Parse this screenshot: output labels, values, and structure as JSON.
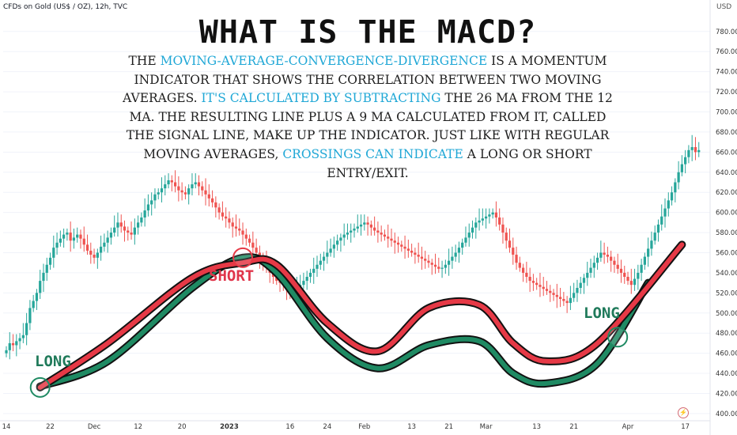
{
  "header": {
    "symbol": "CFDs on Gold (US$ / OZ), 12h, TVC",
    "currency": "USD"
  },
  "title": "WHAT IS THE MACD?",
  "explanation": [
    {
      "text": "THE ",
      "highlight": false
    },
    {
      "text": "MOVING-AVERAGE-CONVERGENCE-DIVERGENCE",
      "highlight": true
    },
    {
      "text": " IS A MOMENTUM INDICATOR THAT SHOWS THE CORRELATION BETWEEN TWO MOVING AVERAGES. ",
      "highlight": false
    },
    {
      "text": "IT'S CALCULATED BY SUBTRACTING",
      "highlight": true
    },
    {
      "text": " THE 26 MA FROM THE 12 MA. THE RESULTING LINE PLUS A 9 MA CALCULATED FROM IT, CALLED THE SIGNAL LINE, MAKE UP THE INDICATOR. JUST LIKE WITH REGULAR MOVING AVERAGES, ",
      "highlight": false
    },
    {
      "text": "CROSSINGS CAN INDICATE",
      "highlight": true
    },
    {
      "text": " A LONG OR SHORT ENTRY/EXIT.",
      "highlight": false
    }
  ],
  "annotations": {
    "long_left": "LONG",
    "short": "SHORT",
    "long_right": "LONG"
  },
  "colors": {
    "up": "#26a69a",
    "down": "#ef5350",
    "macd_line": "#1f8a63",
    "signal_line": "#e63946",
    "highlight": "#1fa7d6"
  },
  "chart_data": {
    "type": "candlestick",
    "y_axis": {
      "unit": "USD",
      "ticks": [
        780,
        760,
        740,
        720,
        700,
        680,
        660,
        640,
        620,
        600,
        580,
        560,
        540,
        520,
        500,
        480,
        460,
        440,
        420,
        400
      ],
      "tick_labels": [
        "780.00",
        "760.00",
        "740.00",
        "720.00",
        "700.00",
        "680.00",
        "660.00",
        "640.00",
        "620.00",
        "600.00",
        "580.00",
        "560.00",
        "540.00",
        "520.00",
        "500.00",
        "480.00",
        "460.00",
        "440.00",
        "420.00",
        "400.00"
      ],
      "range": [
        396,
        794
      ]
    },
    "x_axis": {
      "ticks": [
        {
          "label": "14",
          "pos": 0
        },
        {
          "label": "22",
          "pos": 13
        },
        {
          "label": "Dec",
          "pos": 26
        },
        {
          "label": "12",
          "pos": 39
        },
        {
          "label": "20",
          "pos": 52
        },
        {
          "label": "2023",
          "pos": 66,
          "bold": true
        },
        {
          "label": "16",
          "pos": 84
        },
        {
          "label": "24",
          "pos": 95
        },
        {
          "label": "Feb",
          "pos": 106
        },
        {
          "label": "13",
          "pos": 120
        },
        {
          "label": "21",
          "pos": 131
        },
        {
          "label": "Mar",
          "pos": 142
        },
        {
          "label": "13",
          "pos": 157
        },
        {
          "label": "21",
          "pos": 168
        },
        {
          "label": "Apr",
          "pos": 184
        },
        {
          "label": "17",
          "pos": 201
        }
      ]
    },
    "closes": [
      463,
      470,
      468,
      472,
      475,
      478,
      490,
      505,
      512,
      520,
      532,
      540,
      548,
      555,
      565,
      570,
      574,
      578,
      580,
      572,
      575,
      578,
      574,
      568,
      562,
      558,
      555,
      560,
      566,
      570,
      575,
      580,
      585,
      590,
      586,
      582,
      580,
      578,
      585,
      590,
      595,
      602,
      608,
      612,
      618,
      620,
      624,
      628,
      632,
      630,
      626,
      622,
      620,
      618,
      624,
      628,
      630,
      626,
      622,
      618,
      614,
      610,
      605,
      600,
      596,
      594,
      590,
      586,
      584,
      582,
      578,
      574,
      570,
      565,
      560,
      555,
      550,
      545,
      540,
      536,
      532,
      530,
      528,
      524,
      522,
      520,
      524,
      528,
      532,
      536,
      540,
      544,
      548,
      552,
      556,
      560,
      564,
      568,
      572,
      575,
      578,
      580,
      582,
      584,
      586,
      588,
      590,
      588,
      585,
      582,
      580,
      578,
      576,
      574,
      572,
      570,
      568,
      566,
      564,
      562,
      560,
      558,
      556,
      554,
      552,
      550,
      548,
      546,
      544,
      545,
      548,
      552,
      556,
      560,
      565,
      570,
      575,
      580,
      585,
      590,
      592,
      594,
      596,
      598,
      600,
      595,
      588,
      580,
      572,
      565,
      558,
      550,
      545,
      540,
      536,
      532,
      530,
      528,
      526,
      524,
      522,
      520,
      518,
      516,
      514,
      512,
      510,
      515,
      520,
      525,
      530,
      535,
      540,
      545,
      550,
      555,
      560,
      558,
      556,
      552,
      548,
      544,
      540,
      536,
      532,
      528,
      534,
      540,
      548,
      556,
      564,
      572,
      580,
      588,
      596,
      604,
      612,
      620,
      630,
      640,
      648,
      655,
      662,
      665,
      660,
      662
    ],
    "series": [
      {
        "name": "",
        "role": "macd_line",
        "style": "thick teal",
        "points": [
          [
            10,
            427
          ],
          [
            30,
            452
          ],
          [
            55,
            525
          ],
          [
            70,
            555
          ],
          [
            80,
            540
          ],
          [
            95,
            475
          ],
          [
            110,
            445
          ],
          [
            125,
            468
          ],
          [
            140,
            472
          ],
          [
            150,
            440
          ],
          [
            160,
            430
          ],
          [
            175,
            450
          ],
          [
            190,
            530
          ]
        ]
      },
      {
        "name": "",
        "role": "signal_line",
        "style": "thick red",
        "points": [
          [
            10,
            426
          ],
          [
            30,
            470
          ],
          [
            55,
            535
          ],
          [
            70,
            550
          ],
          [
            80,
            548
          ],
          [
            95,
            490
          ],
          [
            110,
            462
          ],
          [
            125,
            505
          ],
          [
            140,
            508
          ],
          [
            150,
            470
          ],
          [
            160,
            452
          ],
          [
            175,
            470
          ],
          [
            200,
            568
          ]
        ]
      }
    ],
    "markers": [
      {
        "label": "LONG",
        "x": 10,
        "y": 426,
        "kind": "crossover"
      },
      {
        "label": "SHORT",
        "x": 70,
        "y": 555,
        "kind": "crossover"
      },
      {
        "label": "LONG",
        "x": 181,
        "y": 476,
        "kind": "crossover"
      }
    ]
  }
}
